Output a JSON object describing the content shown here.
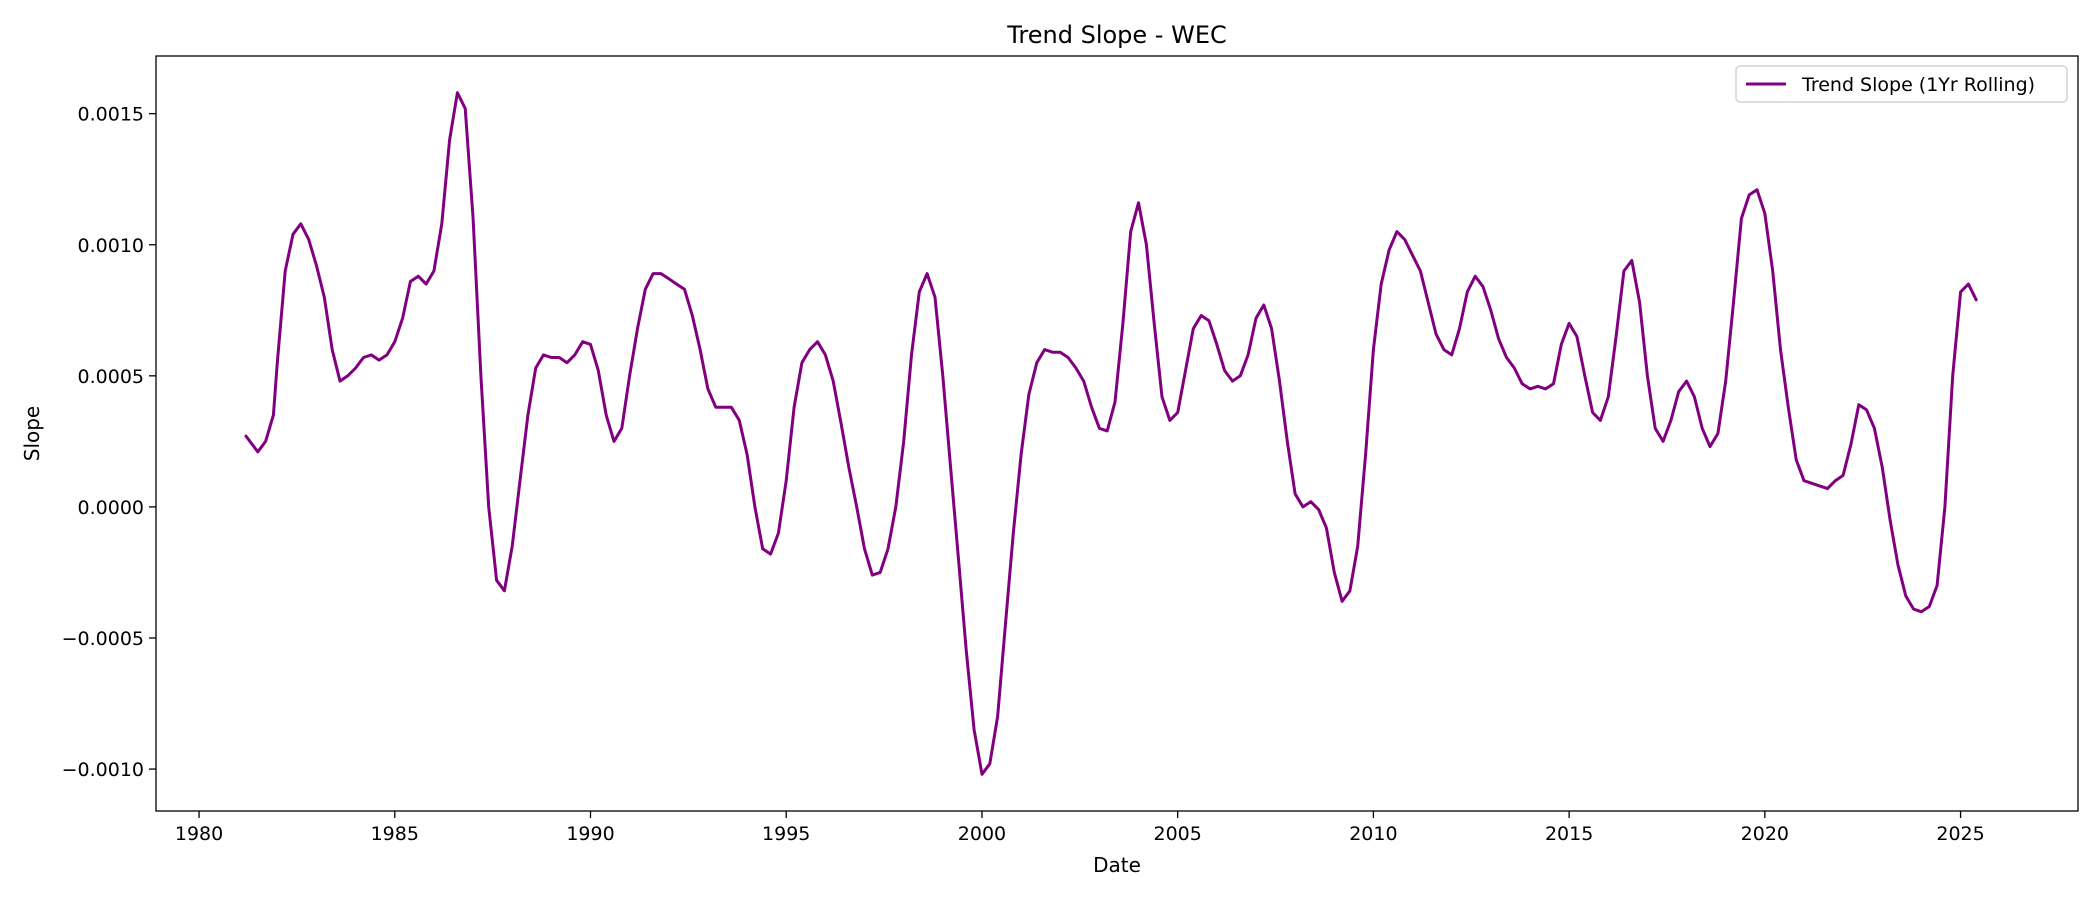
{
  "chart_data": {
    "type": "line",
    "title": "Trend Slope - WEC",
    "xlabel": "Date",
    "ylabel": "Slope",
    "xlim": [
      1978.9,
      2028.0
    ],
    "ylim": [
      -0.00116,
      0.00172
    ],
    "x_ticks": [
      1980,
      1985,
      1990,
      1995,
      2000,
      2005,
      2010,
      2015,
      2020,
      2025
    ],
    "x_tick_labels": [
      "1980",
      "1985",
      "1990",
      "1995",
      "2000",
      "2005",
      "2010",
      "2015",
      "2020",
      "2025"
    ],
    "y_ticks": [
      0.0015,
      0.001,
      0.0005,
      0.0,
      -0.0005,
      -0.001
    ],
    "y_tick_labels": [
      "0.0015",
      "0.0010",
      "0.0005",
      "0.0000",
      "−0.0005",
      "−0.0010"
    ],
    "grid": false,
    "legend_position": "top-right",
    "series": [
      {
        "name": "Trend Slope (1Yr Rolling)",
        "color": "#800080",
        "points": [
          [
            1981.2,
            0.00027
          ],
          [
            1981.5,
            0.00021
          ],
          [
            1981.7,
            0.00025
          ],
          [
            1981.9,
            0.00035
          ],
          [
            1982.0,
            0.00055
          ],
          [
            1982.2,
            0.0009
          ],
          [
            1982.4,
            0.00104
          ],
          [
            1982.6,
            0.00108
          ],
          [
            1982.8,
            0.00102
          ],
          [
            1983.0,
            0.00092
          ],
          [
            1983.2,
            0.0008
          ],
          [
            1983.4,
            0.0006
          ],
          [
            1983.6,
            0.00048
          ],
          [
            1983.8,
            0.0005
          ],
          [
            1984.0,
            0.00053
          ],
          [
            1984.2,
            0.00057
          ],
          [
            1984.4,
            0.00058
          ],
          [
            1984.6,
            0.00056
          ],
          [
            1984.8,
            0.00058
          ],
          [
            1985.0,
            0.00063
          ],
          [
            1985.2,
            0.00072
          ],
          [
            1985.4,
            0.00086
          ],
          [
            1985.6,
            0.00088
          ],
          [
            1985.8,
            0.00085
          ],
          [
            1986.0,
            0.0009
          ],
          [
            1986.2,
            0.00108
          ],
          [
            1986.4,
            0.0014
          ],
          [
            1986.6,
            0.00158
          ],
          [
            1986.8,
            0.00152
          ],
          [
            1987.0,
            0.0011
          ],
          [
            1987.2,
            0.0005
          ],
          [
            1987.4,
            0.0
          ],
          [
            1987.6,
            -0.00028
          ],
          [
            1987.8,
            -0.00032
          ],
          [
            1988.0,
            -0.00015
          ],
          [
            1988.2,
            0.0001
          ],
          [
            1988.4,
            0.00035
          ],
          [
            1988.6,
            0.00053
          ],
          [
            1988.8,
            0.00058
          ],
          [
            1989.0,
            0.00057
          ],
          [
            1989.2,
            0.00057
          ],
          [
            1989.4,
            0.00055
          ],
          [
            1989.6,
            0.00058
          ],
          [
            1989.8,
            0.00063
          ],
          [
            1990.0,
            0.00062
          ],
          [
            1990.2,
            0.00052
          ],
          [
            1990.4,
            0.00035
          ],
          [
            1990.6,
            0.00025
          ],
          [
            1990.8,
            0.0003
          ],
          [
            1991.0,
            0.0005
          ],
          [
            1991.2,
            0.00068
          ],
          [
            1991.4,
            0.00083
          ],
          [
            1991.6,
            0.00089
          ],
          [
            1991.8,
            0.00089
          ],
          [
            1992.0,
            0.00087
          ],
          [
            1992.2,
            0.00085
          ],
          [
            1992.4,
            0.00083
          ],
          [
            1992.6,
            0.00073
          ],
          [
            1992.8,
            0.0006
          ],
          [
            1993.0,
            0.00045
          ],
          [
            1993.2,
            0.00038
          ],
          [
            1993.4,
            0.00038
          ],
          [
            1993.6,
            0.00038
          ],
          [
            1993.8,
            0.00033
          ],
          [
            1994.0,
            0.0002
          ],
          [
            1994.2,
            -0.0
          ],
          [
            1994.4,
            -0.00016
          ],
          [
            1994.6,
            -0.00018
          ],
          [
            1994.8,
            -0.0001
          ],
          [
            1995.0,
            0.0001
          ],
          [
            1995.2,
            0.00038
          ],
          [
            1995.4,
            0.00055
          ],
          [
            1995.6,
            0.0006
          ],
          [
            1995.8,
            0.00063
          ],
          [
            1996.0,
            0.00058
          ],
          [
            1996.2,
            0.00048
          ],
          [
            1996.4,
            0.00032
          ],
          [
            1996.6,
            0.00015
          ],
          [
            1996.8,
            -0.0
          ],
          [
            1997.0,
            -0.00016
          ],
          [
            1997.2,
            -0.00026
          ],
          [
            1997.4,
            -0.00025
          ],
          [
            1997.6,
            -0.00016
          ],
          [
            1997.8,
            0.0
          ],
          [
            1998.0,
            0.00025
          ],
          [
            1998.2,
            0.00058
          ],
          [
            1998.4,
            0.00082
          ],
          [
            1998.6,
            0.00089
          ],
          [
            1998.8,
            0.0008
          ],
          [
            1999.0,
            0.0005
          ],
          [
            1999.2,
            0.00015
          ],
          [
            1999.4,
            -0.0002
          ],
          [
            1999.6,
            -0.00055
          ],
          [
            1999.8,
            -0.00085
          ],
          [
            2000.0,
            -0.00102
          ],
          [
            2000.2,
            -0.00098
          ],
          [
            2000.4,
            -0.0008
          ],
          [
            2000.6,
            -0.00045
          ],
          [
            2000.8,
            -0.0001
          ],
          [
            2001.0,
            0.0002
          ],
          [
            2001.2,
            0.00043
          ],
          [
            2001.4,
            0.00055
          ],
          [
            2001.6,
            0.0006
          ],
          [
            2001.8,
            0.00059
          ],
          [
            2002.0,
            0.00059
          ],
          [
            2002.2,
            0.00057
          ],
          [
            2002.4,
            0.00053
          ],
          [
            2002.6,
            0.00048
          ],
          [
            2002.8,
            0.00038
          ],
          [
            2003.0,
            0.0003
          ],
          [
            2003.2,
            0.00029
          ],
          [
            2003.4,
            0.0004
          ],
          [
            2003.6,
            0.0007
          ],
          [
            2003.8,
            0.00105
          ],
          [
            2004.0,
            0.00116
          ],
          [
            2004.2,
            0.001
          ],
          [
            2004.4,
            0.0007
          ],
          [
            2004.6,
            0.00042
          ],
          [
            2004.8,
            0.00033
          ],
          [
            2005.0,
            0.00036
          ],
          [
            2005.2,
            0.00052
          ],
          [
            2005.4,
            0.00068
          ],
          [
            2005.6,
            0.00073
          ],
          [
            2005.8,
            0.00071
          ],
          [
            2006.0,
            0.00062
          ],
          [
            2006.2,
            0.00052
          ],
          [
            2006.4,
            0.00048
          ],
          [
            2006.6,
            0.0005
          ],
          [
            2006.8,
            0.00058
          ],
          [
            2007.0,
            0.00072
          ],
          [
            2007.2,
            0.00077
          ],
          [
            2007.4,
            0.00068
          ],
          [
            2007.6,
            0.00048
          ],
          [
            2007.8,
            0.00025
          ],
          [
            2008.0,
            5e-05
          ],
          [
            2008.2,
            0.0
          ],
          [
            2008.4,
            2e-05
          ],
          [
            2008.6,
            -1e-05
          ],
          [
            2008.8,
            -8e-05
          ],
          [
            2009.0,
            -0.00025
          ],
          [
            2009.2,
            -0.00036
          ],
          [
            2009.4,
            -0.00032
          ],
          [
            2009.6,
            -0.00015
          ],
          [
            2009.8,
            0.0002
          ],
          [
            2010.0,
            0.0006
          ],
          [
            2010.2,
            0.00085
          ],
          [
            2010.4,
            0.00098
          ],
          [
            2010.6,
            0.00105
          ],
          [
            2010.8,
            0.00102
          ],
          [
            2011.0,
            0.00096
          ],
          [
            2011.2,
            0.0009
          ],
          [
            2011.4,
            0.00078
          ],
          [
            2011.6,
            0.00066
          ],
          [
            2011.8,
            0.0006
          ],
          [
            2012.0,
            0.00058
          ],
          [
            2012.2,
            0.00068
          ],
          [
            2012.4,
            0.00082
          ],
          [
            2012.6,
            0.00088
          ],
          [
            2012.8,
            0.00084
          ],
          [
            2013.0,
            0.00075
          ],
          [
            2013.2,
            0.00064
          ],
          [
            2013.4,
            0.00057
          ],
          [
            2013.6,
            0.00053
          ],
          [
            2013.8,
            0.00047
          ],
          [
            2014.0,
            0.00045
          ],
          [
            2014.2,
            0.00046
          ],
          [
            2014.4,
            0.00045
          ],
          [
            2014.6,
            0.00047
          ],
          [
            2014.8,
            0.00062
          ],
          [
            2015.0,
            0.0007
          ],
          [
            2015.2,
            0.00065
          ],
          [
            2015.4,
            0.0005
          ],
          [
            2015.6,
            0.00036
          ],
          [
            2015.8,
            0.00033
          ],
          [
            2016.0,
            0.00042
          ],
          [
            2016.2,
            0.00065
          ],
          [
            2016.4,
            0.0009
          ],
          [
            2016.6,
            0.00094
          ],
          [
            2016.8,
            0.00078
          ],
          [
            2017.0,
            0.0005
          ],
          [
            2017.2,
            0.0003
          ],
          [
            2017.4,
            0.00025
          ],
          [
            2017.6,
            0.00033
          ],
          [
            2017.8,
            0.00044
          ],
          [
            2018.0,
            0.00048
          ],
          [
            2018.2,
            0.00042
          ],
          [
            2018.4,
            0.0003
          ],
          [
            2018.6,
            0.00023
          ],
          [
            2018.8,
            0.00028
          ],
          [
            2019.0,
            0.00048
          ],
          [
            2019.2,
            0.00078
          ],
          [
            2019.4,
            0.0011
          ],
          [
            2019.6,
            0.00119
          ],
          [
            2019.8,
            0.00121
          ],
          [
            2020.0,
            0.00112
          ],
          [
            2020.2,
            0.0009
          ],
          [
            2020.4,
            0.0006
          ],
          [
            2020.6,
            0.00038
          ],
          [
            2020.8,
            0.00018
          ],
          [
            2021.0,
            0.0001
          ],
          [
            2021.2,
            9e-05
          ],
          [
            2021.4,
            8e-05
          ],
          [
            2021.6,
            7e-05
          ],
          [
            2021.8,
            0.0001
          ],
          [
            2022.0,
            0.00012
          ],
          [
            2022.2,
            0.00024
          ],
          [
            2022.4,
            0.00039
          ],
          [
            2022.6,
            0.00037
          ],
          [
            2022.8,
            0.0003
          ],
          [
            2023.0,
            0.00015
          ],
          [
            2023.2,
            -5e-05
          ],
          [
            2023.4,
            -0.00022
          ],
          [
            2023.6,
            -0.00034
          ],
          [
            2023.8,
            -0.00039
          ],
          [
            2024.0,
            -0.0004
          ],
          [
            2024.2,
            -0.00038
          ],
          [
            2024.4,
            -0.0003
          ],
          [
            2024.6,
            0.0
          ],
          [
            2024.8,
            0.0005
          ],
          [
            2025.0,
            0.00082
          ],
          [
            2025.2,
            0.00085
          ],
          [
            2025.4,
            0.00079
          ]
        ]
      }
    ]
  }
}
